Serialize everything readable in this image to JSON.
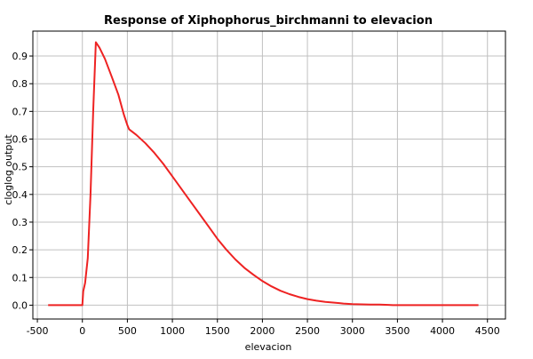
{
  "chart_data": {
    "type": "line",
    "title": "Response of Xiphophorus_birchmanni to elevacion",
    "xlabel": "elevacion",
    "ylabel": "cloglog output",
    "xlim": [
      -550,
      4700
    ],
    "ylim": [
      -0.05,
      0.99
    ],
    "x_ticks": [
      -500,
      0,
      500,
      1000,
      1500,
      2000,
      2500,
      3000,
      3500,
      4000,
      4500
    ],
    "y_ticks": [
      0.0,
      0.1,
      0.2,
      0.3,
      0.4,
      0.5,
      0.6,
      0.7,
      0.8,
      0.9
    ],
    "grid": true,
    "colors": {
      "series": "#ee2222",
      "grid": "#c0c0c0",
      "frame": "#000000"
    },
    "series": [
      {
        "x": [
          -380,
          0,
          10,
          30,
          60,
          90,
          120,
          150,
          190,
          250,
          320,
          400,
          460,
          500,
          520,
          600,
          700,
          800,
          900,
          1000,
          1100,
          1200,
          1300,
          1400,
          1500,
          1600,
          1700,
          1800,
          1900,
          2000,
          2100,
          2200,
          2300,
          2400,
          2500,
          2600,
          2700,
          2800,
          2900,
          3000,
          3100,
          3200,
          3300,
          3400,
          3450,
          3600,
          3800,
          4000,
          4200,
          4400
        ],
        "y": [
          0.0,
          0.0,
          0.05,
          0.08,
          0.17,
          0.4,
          0.7,
          0.95,
          0.93,
          0.89,
          0.83,
          0.76,
          0.69,
          0.65,
          0.635,
          0.615,
          0.585,
          0.55,
          0.51,
          0.465,
          0.42,
          0.375,
          0.33,
          0.285,
          0.24,
          0.2,
          0.165,
          0.135,
          0.11,
          0.087,
          0.068,
          0.052,
          0.04,
          0.03,
          0.022,
          0.016,
          0.012,
          0.009,
          0.006,
          0.004,
          0.003,
          0.002,
          0.002,
          0.001,
          0.0,
          0.0,
          0.0,
          0.0,
          0.0,
          0.0
        ]
      }
    ]
  }
}
